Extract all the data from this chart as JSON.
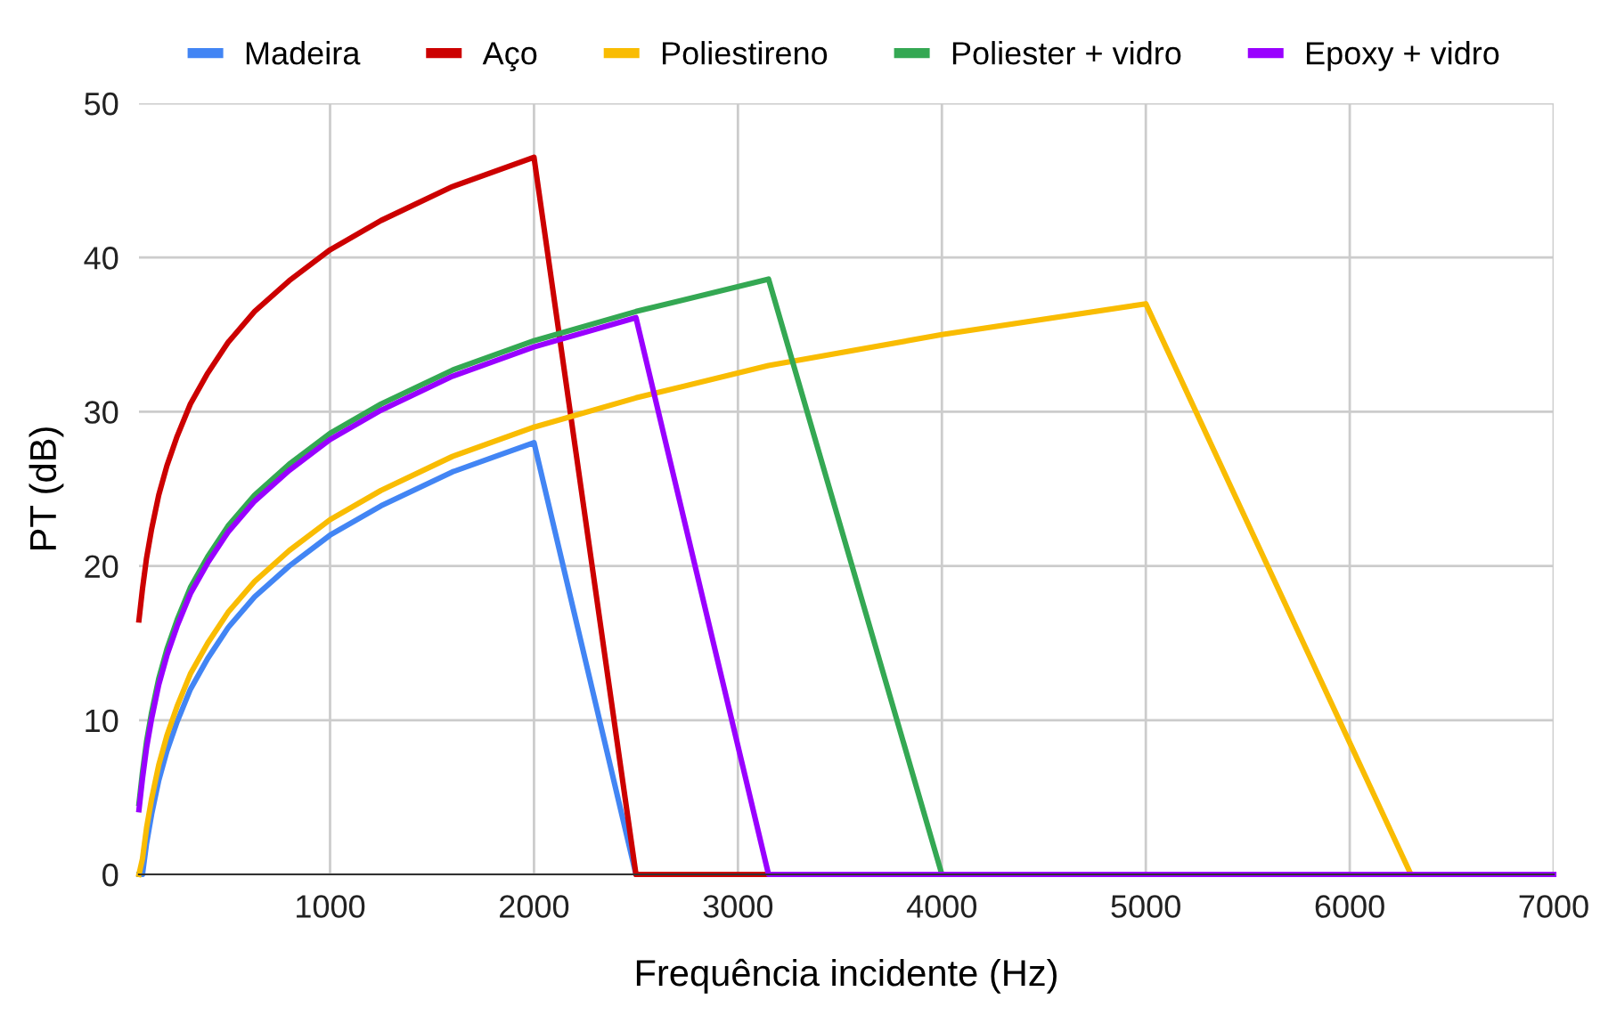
{
  "chart_data": {
    "type": "line",
    "xlabel": "Frequência incidente (Hz)",
    "ylabel": "PT (dB)",
    "x": [
      63,
      80,
      100,
      125,
      160,
      200,
      250,
      315,
      400,
      500,
      630,
      800,
      1000,
      1250,
      1600,
      2000,
      2500,
      3150,
      4000,
      5000,
      6300,
      7000
    ],
    "series": [
      {
        "name": "Madeira",
        "color": "#4285f4",
        "values": [
          0,
          0.0,
          2.0,
          3.9,
          6.1,
          8.0,
          9.9,
          12.0,
          14.0,
          16.0,
          18.0,
          20.0,
          22.0,
          23.9,
          26.1,
          28.0,
          0,
          0,
          0,
          null,
          null,
          null
        ]
      },
      {
        "name": "Aço",
        "color": "#cc0000",
        "values": [
          16.5,
          18.5,
          20.5,
          22.4,
          24.6,
          26.5,
          28.4,
          30.5,
          32.5,
          34.5,
          36.5,
          38.5,
          40.5,
          42.4,
          44.6,
          46.5,
          0,
          0,
          0,
          null,
          null,
          null
        ]
      },
      {
        "name": "Poliestireno",
        "color": "#f9bc02",
        "values": [
          0,
          1.0,
          3.0,
          4.9,
          7.1,
          9.0,
          10.9,
          13.0,
          15.0,
          17.0,
          19.0,
          21.0,
          23.0,
          24.9,
          27.1,
          29.0,
          30.9,
          33.0,
          35.0,
          37.0,
          0,
          0
        ]
      },
      {
        "name": "Poliester + vidro",
        "color": "#34a853",
        "values": [
          4.6,
          6.6,
          8.6,
          10.5,
          12.7,
          14.6,
          16.5,
          18.6,
          20.6,
          22.6,
          24.6,
          26.6,
          28.6,
          30.5,
          32.7,
          34.6,
          36.5,
          38.6,
          0,
          0,
          null,
          null
        ]
      },
      {
        "name": "Epoxy + vidro",
        "color": "#9900ff",
        "values": [
          4.2,
          6.2,
          8.2,
          10.1,
          12.3,
          14.2,
          16.1,
          18.2,
          20.2,
          22.2,
          24.2,
          26.2,
          28.2,
          30.1,
          32.3,
          34.2,
          36.1,
          0,
          0,
          0,
          0,
          0
        ]
      }
    ],
    "xlim": [
      63,
      7000
    ],
    "xticks": [
      1000,
      2000,
      3000,
      4000,
      5000,
      6000,
      7000
    ],
    "ylim": [
      0,
      50
    ],
    "yticks": [
      0,
      10,
      20,
      30,
      40,
      50
    ],
    "grid": true,
    "legend": "top",
    "marker": "none",
    "line_style": "solid"
  }
}
